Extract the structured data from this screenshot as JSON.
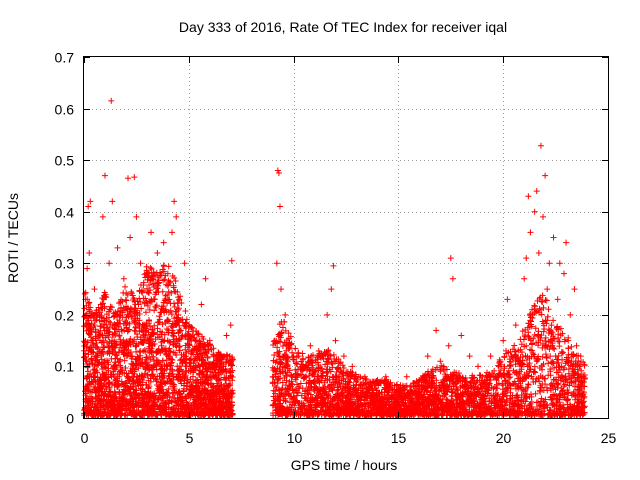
{
  "chart_data": {
    "type": "scatter",
    "title": "Day 333 of 2016, Rate Of TEC Index for receiver iqal",
    "xlabel": "GPS time / hours",
    "ylabel": "ROTI / TECUs",
    "xlim": [
      0,
      25
    ],
    "ylim": [
      0,
      0.7
    ],
    "xticks": [
      0,
      5,
      10,
      15,
      20,
      25
    ],
    "xtick_labels": [
      "0",
      "5",
      "10",
      "15",
      "20",
      "25"
    ],
    "yticks": [
      0,
      0.1,
      0.2,
      0.3,
      0.4,
      0.5,
      0.6,
      0.7
    ],
    "ytick_labels": [
      "0",
      "0.1",
      "0.2",
      "0.3",
      "0.4",
      "0.5",
      "0.6",
      "0.7"
    ],
    "grid": true,
    "marker": "+",
    "marker_color": "#ff0000",
    "series": [
      {
        "name": "iqal",
        "points": [
          [
            0.05,
            0.02
          ],
          [
            0.1,
            0.18
          ],
          [
            0.15,
            0.29
          ],
          [
            0.2,
            0.41
          ],
          [
            0.25,
            0.32
          ],
          [
            0.3,
            0.42
          ],
          [
            0.35,
            0.08
          ],
          [
            0.4,
            0.15
          ],
          [
            0.5,
            0.25
          ],
          [
            0.6,
            0.12
          ],
          [
            0.7,
            0.06
          ],
          [
            0.8,
            0.22
          ],
          [
            0.9,
            0.39
          ],
          [
            1.0,
            0.47
          ],
          [
            1.1,
            0.16
          ],
          [
            1.2,
            0.3
          ],
          [
            1.3,
            0.615
          ],
          [
            1.35,
            0.42
          ],
          [
            1.4,
            0.09
          ],
          [
            1.5,
            0.2
          ],
          [
            1.6,
            0.33
          ],
          [
            1.7,
            0.11
          ],
          [
            1.8,
            0.04
          ],
          [
            1.9,
            0.27
          ],
          [
            2.0,
            0.18
          ],
          [
            2.1,
            0.465
          ],
          [
            2.2,
            0.35
          ],
          [
            2.3,
            0.12
          ],
          [
            2.4,
            0.467
          ],
          [
            2.5,
            0.39
          ],
          [
            2.6,
            0.22
          ],
          [
            2.7,
            0.3
          ],
          [
            2.8,
            0.08
          ],
          [
            2.9,
            0.15
          ],
          [
            3.0,
            0.28
          ],
          [
            3.1,
            0.19
          ],
          [
            3.2,
            0.36
          ],
          [
            3.3,
            0.1
          ],
          [
            3.4,
            0.24
          ],
          [
            3.5,
            0.32
          ],
          [
            3.6,
            0.05
          ],
          [
            3.7,
            0.14
          ],
          [
            3.8,
            0.34
          ],
          [
            3.9,
            0.21
          ],
          [
            4.0,
            0.28
          ],
          [
            4.1,
            0.12
          ],
          [
            4.2,
            0.36
          ],
          [
            4.3,
            0.42
          ],
          [
            4.4,
            0.39
          ],
          [
            4.5,
            0.2
          ],
          [
            4.6,
            0.08
          ],
          [
            4.7,
            0.16
          ],
          [
            4.8,
            0.3
          ],
          [
            4.9,
            0.1
          ],
          [
            5.0,
            0.18
          ],
          [
            5.2,
            0.07
          ],
          [
            5.4,
            0.12
          ],
          [
            5.6,
            0.22
          ],
          [
            5.8,
            0.27
          ],
          [
            6.0,
            0.15
          ],
          [
            6.2,
            0.08
          ],
          [
            6.4,
            0.12
          ],
          [
            6.6,
            0.05
          ],
          [
            6.8,
            0.16
          ],
          [
            6.9,
            0.02
          ],
          [
            7.0,
            0.18
          ],
          [
            7.05,
            0.305
          ],
          [
            9.0,
            0.08
          ],
          [
            9.1,
            0.15
          ],
          [
            9.2,
            0.3
          ],
          [
            9.25,
            0.48
          ],
          [
            9.3,
            0.475
          ],
          [
            9.35,
            0.41
          ],
          [
            9.4,
            0.25
          ],
          [
            9.5,
            0.12
          ],
          [
            9.6,
            0.2
          ],
          [
            9.7,
            0.1
          ],
          [
            9.8,
            0.07
          ],
          [
            10.0,
            0.12
          ],
          [
            10.2,
            0.05
          ],
          [
            10.4,
            0.1
          ],
          [
            10.6,
            0.08
          ],
          [
            10.8,
            0.14
          ],
          [
            11.0,
            0.06
          ],
          [
            11.2,
            0.13
          ],
          [
            11.4,
            0.09
          ],
          [
            11.6,
            0.2
          ],
          [
            11.8,
            0.25
          ],
          [
            11.9,
            0.295
          ],
          [
            12.0,
            0.15
          ],
          [
            12.2,
            0.08
          ],
          [
            12.4,
            0.12
          ],
          [
            12.6,
            0.05
          ],
          [
            12.8,
            0.1
          ],
          [
            13.0,
            0.07
          ],
          [
            13.2,
            0.04
          ],
          [
            13.4,
            0.08
          ],
          [
            13.6,
            0.06
          ],
          [
            13.8,
            0.03
          ],
          [
            14.0,
            0.07
          ],
          [
            14.2,
            0.05
          ],
          [
            14.4,
            0.08
          ],
          [
            14.6,
            0.04
          ],
          [
            14.8,
            0.02
          ],
          [
            15.0,
            0.06
          ],
          [
            15.2,
            0.04
          ],
          [
            15.4,
            0.08
          ],
          [
            15.6,
            0.03
          ],
          [
            15.8,
            0.05
          ],
          [
            16.0,
            0.07
          ],
          [
            16.2,
            0.04
          ],
          [
            16.4,
            0.12
          ],
          [
            16.6,
            0.09
          ],
          [
            16.8,
            0.17
          ],
          [
            17.0,
            0.11
          ],
          [
            17.2,
            0.06
          ],
          [
            17.4,
            0.14
          ],
          [
            17.5,
            0.31
          ],
          [
            17.6,
            0.27
          ],
          [
            17.8,
            0.08
          ],
          [
            18.0,
            0.16
          ],
          [
            18.2,
            0.05
          ],
          [
            18.4,
            0.12
          ],
          [
            18.6,
            0.07
          ],
          [
            18.8,
            0.1
          ],
          [
            19.0,
            0.04
          ],
          [
            19.2,
            0.08
          ],
          [
            19.4,
            0.12
          ],
          [
            19.6,
            0.06
          ],
          [
            19.8,
            0.1
          ],
          [
            20.0,
            0.15
          ],
          [
            20.2,
            0.23
          ],
          [
            20.4,
            0.12
          ],
          [
            20.6,
            0.18
          ],
          [
            20.8,
            0.09
          ],
          [
            21.0,
            0.27
          ],
          [
            21.1,
            0.31
          ],
          [
            21.2,
            0.43
          ],
          [
            21.3,
            0.36
          ],
          [
            21.4,
            0.2
          ],
          [
            21.5,
            0.4
          ],
          [
            21.6,
            0.44
          ],
          [
            21.7,
            0.32
          ],
          [
            21.8,
            0.528
          ],
          [
            21.9,
            0.39
          ],
          [
            22.0,
            0.47
          ],
          [
            22.1,
            0.25
          ],
          [
            22.2,
            0.3
          ],
          [
            22.3,
            0.18
          ],
          [
            22.4,
            0.35
          ],
          [
            22.5,
            0.12
          ],
          [
            22.6,
            0.23
          ],
          [
            22.7,
            0.3
          ],
          [
            22.8,
            0.08
          ],
          [
            22.9,
            0.28
          ],
          [
            23.0,
            0.34
          ],
          [
            23.1,
            0.15
          ],
          [
            23.2,
            0.2
          ],
          [
            23.3,
            0.1
          ],
          [
            23.4,
            0.25
          ],
          [
            23.5,
            0.14
          ],
          [
            23.6,
            0.06
          ],
          [
            23.7,
            0.12
          ],
          [
            23.8,
            0.03
          ],
          [
            23.85,
            0.07
          ]
        ],
        "density_clusters": [
          {
            "x_range": [
              0.0,
              7.1
            ],
            "y_envelope": [
              [
                0,
                0.25
              ],
              [
                0.5,
                0.2
              ],
              [
                1,
                0.24
              ],
              [
                1.5,
                0.2
              ],
              [
                2,
                0.26
              ],
              [
                2.5,
                0.22
              ],
              [
                3,
                0.3
              ],
              [
                3.5,
                0.28
              ],
              [
                4,
                0.3
              ],
              [
                4.5,
                0.25
              ],
              [
                5,
                0.18
              ],
              [
                5.5,
                0.16
              ],
              [
                6,
                0.14
              ],
              [
                6.5,
                0.12
              ],
              [
                7.1,
                0.12
              ]
            ],
            "count": 2600
          },
          {
            "x_range": [
              9.0,
              23.9
            ],
            "y_envelope": [
              [
                9,
                0.14
              ],
              [
                9.5,
                0.2
              ],
              [
                10,
                0.14
              ],
              [
                10.5,
                0.12
              ],
              [
                11,
                0.12
              ],
              [
                11.5,
                0.13
              ],
              [
                12,
                0.12
              ],
              [
                12.5,
                0.09
              ],
              [
                13,
                0.08
              ],
              [
                13.5,
                0.07
              ],
              [
                14,
                0.07
              ],
              [
                14.5,
                0.07
              ],
              [
                15,
                0.06
              ],
              [
                15.5,
                0.06
              ],
              [
                16,
                0.07
              ],
              [
                16.5,
                0.09
              ],
              [
                17,
                0.1
              ],
              [
                17.5,
                0.09
              ],
              [
                18,
                0.08
              ],
              [
                18.5,
                0.08
              ],
              [
                19,
                0.08
              ],
              [
                19.5,
                0.09
              ],
              [
                20,
                0.12
              ],
              [
                20.5,
                0.14
              ],
              [
                21,
                0.17
              ],
              [
                21.5,
                0.22
              ],
              [
                22,
                0.24
              ],
              [
                22.5,
                0.18
              ],
              [
                23,
                0.16
              ],
              [
                23.5,
                0.12
              ],
              [
                23.9,
                0.1
              ]
            ],
            "count": 3200
          }
        ]
      }
    ]
  }
}
